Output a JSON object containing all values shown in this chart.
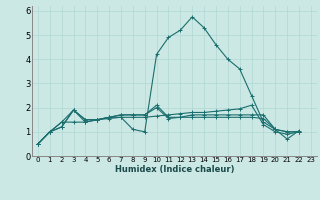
{
  "xlabel": "Humidex (Indice chaleur)",
  "background_color": "#cce8e4",
  "grid_color": "#b0d8d4",
  "line_color": "#1a6e6e",
  "xlim": [
    -0.5,
    23.5
  ],
  "ylim": [
    0,
    6.2
  ],
  "xticks": [
    0,
    1,
    2,
    3,
    4,
    5,
    6,
    7,
    8,
    9,
    10,
    11,
    12,
    13,
    14,
    15,
    16,
    17,
    18,
    19,
    20,
    21,
    22,
    23
  ],
  "yticks": [
    0,
    1,
    2,
    3,
    4,
    5,
    6
  ],
  "lines": [
    [
      0.5,
      1.0,
      1.2,
      1.9,
      1.4,
      1.5,
      1.6,
      1.6,
      1.1,
      1.0,
      4.2,
      4.9,
      5.2,
      5.75,
      5.3,
      4.6,
      4.0,
      3.6,
      2.5,
      1.4,
      1.1,
      0.7,
      1.05
    ],
    [
      0.5,
      1.0,
      1.4,
      1.9,
      1.5,
      1.5,
      1.6,
      1.7,
      1.7,
      1.7,
      2.1,
      1.6,
      1.6,
      1.7,
      1.7,
      1.7,
      1.7,
      1.7,
      1.7,
      1.7,
      1.1,
      1.0,
      1.0
    ],
    [
      0.5,
      1.0,
      1.4,
      1.4,
      1.4,
      1.5,
      1.55,
      1.6,
      1.6,
      1.6,
      1.65,
      1.7,
      1.75,
      1.8,
      1.8,
      1.85,
      1.9,
      1.95,
      2.1,
      1.3,
      1.0,
      0.9,
      1.0
    ],
    [
      0.5,
      1.0,
      1.2,
      1.9,
      1.5,
      1.5,
      1.6,
      1.7,
      1.7,
      1.7,
      2.0,
      1.55,
      1.6,
      1.6,
      1.6,
      1.6,
      1.6,
      1.6,
      1.6,
      1.55,
      1.1,
      1.0,
      1.0
    ]
  ],
  "marker": "+",
  "linewidth": 0.8,
  "marker_size": 3,
  "xlabel_fontsize": 6,
  "tick_fontsize": 5
}
